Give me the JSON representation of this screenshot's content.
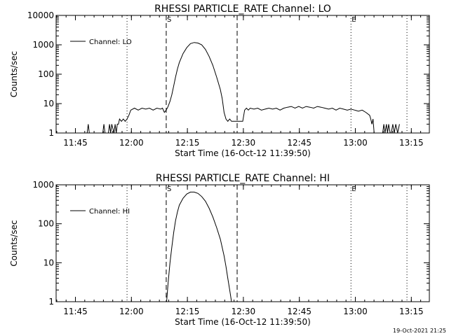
{
  "footer_timestamp": "19-Oct-2021 21:25",
  "chart_data": [
    {
      "type": "line",
      "title": "RHESSI PARTICLE_RATE Channel: LO",
      "xlabel": "Start Time (16-Oct-12 11:39:50)",
      "ylabel": "Counts/sec",
      "y_scale": "log",
      "ylim": [
        1,
        10000
      ],
      "y_ticks": [
        1,
        10,
        100,
        1000,
        10000
      ],
      "x_unit": "minutes after 11:39:50",
      "xlim": [
        0,
        100
      ],
      "x_ticks": [
        {
          "label": "11:45",
          "x": 5.17
        },
        {
          "label": "12:00",
          "x": 20.17
        },
        {
          "label": "12:15",
          "x": 35.17
        },
        {
          "label": "12:30",
          "x": 50.17
        },
        {
          "label": "12:45",
          "x": 65.17
        },
        {
          "label": "13:00",
          "x": 80.17
        },
        {
          "label": "13:15",
          "x": 95.17
        }
      ],
      "legend": {
        "label": "Channel: LO",
        "position": "top-left"
      },
      "markers": [
        {
          "label": "S",
          "x": 29.5,
          "style": "dashed"
        },
        {
          "label": "",
          "x": 48.5,
          "style": "dashed"
        },
        {
          "label": "E",
          "x": 79.0,
          "style": "dotted"
        },
        {
          "label": "",
          "x": 19.0,
          "style": "dotted"
        },
        {
          "label": "",
          "x": 94.0,
          "style": "dotted"
        }
      ],
      "series": [
        {
          "name": "Channel: LO",
          "x": [
            8.3,
            8.6,
            8.9,
            12.5,
            12.8,
            13.1,
            14.0,
            14.3,
            14.6,
            14.9,
            15.5,
            15.8,
            16.1,
            16.4,
            16.7,
            17.0,
            17.5,
            18.0,
            18.5,
            19.0,
            19.5,
            20.0,
            21,
            22,
            23,
            24,
            25,
            26,
            27,
            28,
            28.5,
            29,
            29.5,
            30,
            30.5,
            31,
            31.5,
            32,
            32.5,
            33,
            34,
            35,
            36,
            37,
            38,
            39,
            40,
            41,
            42,
            43,
            44,
            44.5,
            45,
            45.5,
            46,
            46.5,
            47,
            48,
            48.5,
            49,
            50,
            50.5,
            51,
            51.5,
            52,
            53,
            54,
            55,
            56,
            57,
            58,
            59,
            60,
            61,
            62,
            63,
            64,
            65,
            66,
            67,
            68,
            69,
            70,
            71,
            72,
            73,
            74,
            75,
            76,
            77,
            78,
            79,
            80,
            81,
            82,
            83,
            84,
            84.3,
            84.6,
            84.9,
            85.2,
            87.5,
            87.8,
            88.1,
            88.5,
            88.8,
            89.1,
            89.5,
            89.8,
            90.2,
            90.6,
            91.0,
            91.5,
            92.0
          ],
          "y": [
            1,
            2,
            1,
            1,
            2,
            1,
            1,
            2,
            1,
            2,
            1,
            2,
            1,
            2,
            2,
            3,
            2.5,
            3,
            2.5,
            3,
            4,
            6,
            7,
            6,
            7,
            6.5,
            7,
            6,
            7,
            6.5,
            7,
            5,
            6,
            8,
            12,
            20,
            40,
            80,
            150,
            250,
            500,
            800,
            1100,
            1200,
            1150,
            1000,
            700,
            400,
            200,
            80,
            30,
            15,
            5,
            3,
            2.5,
            3,
            2.5,
            2.5,
            2.5,
            2.5,
            2.5,
            6,
            7,
            6,
            7,
            6.5,
            7,
            6,
            6.5,
            7,
            6.5,
            7,
            6,
            7,
            7.5,
            8,
            7,
            8,
            7,
            8,
            7.5,
            7,
            8,
            7.5,
            7,
            6.5,
            7,
            6,
            7,
            6.5,
            6,
            6.5,
            6,
            5.5,
            6,
            5,
            4,
            3,
            2,
            3,
            1,
            1,
            2,
            1,
            2,
            1,
            2,
            1,
            1,
            2,
            1,
            2,
            1,
            2
          ]
        }
      ]
    },
    {
      "type": "line",
      "title": "RHESSI PARTICLE_RATE Channel: HI",
      "xlabel": "Start Time (16-Oct-12 11:39:50)",
      "ylabel": "Counts/sec",
      "y_scale": "log",
      "ylim": [
        1,
        1000
      ],
      "y_ticks": [
        1,
        10,
        100,
        1000
      ],
      "x_unit": "minutes after 11:39:50",
      "xlim": [
        0,
        100
      ],
      "x_ticks": [
        {
          "label": "11:45",
          "x": 5.17
        },
        {
          "label": "12:00",
          "x": 20.17
        },
        {
          "label": "12:15",
          "x": 35.17
        },
        {
          "label": "12:30",
          "x": 50.17
        },
        {
          "label": "12:45",
          "x": 65.17
        },
        {
          "label": "13:00",
          "x": 80.17
        },
        {
          "label": "13:15",
          "x": 95.17
        }
      ],
      "legend": {
        "label": "Channel: HI",
        "position": "top-left"
      },
      "markers": [
        {
          "label": "S",
          "x": 29.5,
          "style": "dashed"
        },
        {
          "label": "",
          "x": 48.5,
          "style": "dashed"
        },
        {
          "label": "E",
          "x": 79.0,
          "style": "dotted"
        },
        {
          "label": "",
          "x": 19.0,
          "style": "dotted"
        },
        {
          "label": "",
          "x": 94.0,
          "style": "dotted"
        }
      ],
      "series": [
        {
          "name": "Channel: HI",
          "x": [
            29.6,
            30.0,
            30.5,
            31.0,
            31.5,
            32.0,
            32.5,
            33.0,
            34.0,
            35.0,
            36.0,
            37.0,
            38.0,
            39.0,
            40.0,
            41.0,
            42.0,
            43.0,
            44.0,
            45.0,
            45.5,
            46.0,
            46.5,
            47.0
          ],
          "y": [
            1,
            3,
            10,
            25,
            60,
            120,
            200,
            300,
            450,
            580,
            650,
            650,
            600,
            500,
            380,
            250,
            150,
            80,
            40,
            15,
            8,
            4,
            2,
            1
          ]
        }
      ]
    }
  ]
}
